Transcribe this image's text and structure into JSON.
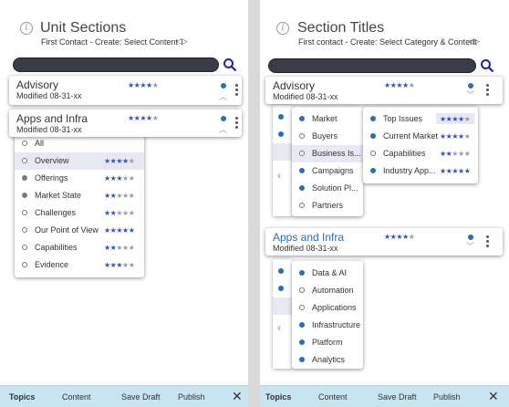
{
  "left": {
    "title": "Unit Sections",
    "subtitle": "First Contact - Create: Select Content",
    "cards": [
      {
        "title": "Advisory",
        "modified": "Modified  08-31-xx",
        "rating": 4
      },
      {
        "title": "Apps and Infra",
        "modified": "Modified  08-31-xx",
        "rating": 4
      }
    ],
    "items": [
      {
        "label": "All",
        "bullet": "hollow",
        "rating": 0,
        "selected": false
      },
      {
        "label": "Overview",
        "bullet": "hollow",
        "rating": 4,
        "selected": true
      },
      {
        "label": "Offerings",
        "bullet": "gray",
        "rating": 3,
        "selected": false
      },
      {
        "label": "Market State",
        "bullet": "gray",
        "rating": 2,
        "selected": false
      },
      {
        "label": "Challenges",
        "bullet": "hollow",
        "rating": 2,
        "selected": false
      },
      {
        "label": "Our Point of View",
        "bullet": "hollow",
        "rating": 5,
        "selected": false
      },
      {
        "label": "Capabilities",
        "bullet": "hollow",
        "rating": 2,
        "selected": false
      },
      {
        "label": "Evidence",
        "bullet": "hollow",
        "rating": 3,
        "selected": false
      }
    ]
  },
  "right": {
    "title": "Section Titles",
    "subtitle": "First contact - Create: Select Category & Content",
    "cards": [
      {
        "title": "Advisory",
        "modified": "Modified  08-31-xx",
        "rating": 4
      },
      {
        "title": "Apps and Infra",
        "modified": "Modified  08-31-xx",
        "rating": 4
      }
    ],
    "advisory_categories": [
      {
        "label": "Market",
        "bullet": "filled",
        "selected": false
      },
      {
        "label": "Buyers",
        "bullet": "hollow",
        "selected": false
      },
      {
        "label": "Business Is...",
        "bullet": "hollow",
        "selected": true
      },
      {
        "label": "Campaigns",
        "bullet": "filled",
        "selected": false
      },
      {
        "label": "Solution Pl...",
        "bullet": "filled",
        "selected": false
      },
      {
        "label": "Partners",
        "bullet": "hollow",
        "selected": false
      }
    ],
    "advisory_contents": [
      {
        "label": "Top Issues",
        "bullet": "filled",
        "rating": 4
      },
      {
        "label": "Current Market",
        "bullet": "filled",
        "rating": 4
      },
      {
        "label": "Capabilities",
        "bullet": "hollow",
        "rating": 2
      },
      {
        "label": "Industry App...",
        "bullet": "filled",
        "rating": 5
      }
    ],
    "infra_categories": [
      {
        "label": "Data & AI",
        "bullet": "filled"
      },
      {
        "label": "Automation",
        "bullet": "hollow"
      },
      {
        "label": "Applications",
        "bullet": "hollow"
      },
      {
        "label": "Infrastructure",
        "bullet": "filled"
      },
      {
        "label": "Platform",
        "bullet": "filled"
      },
      {
        "label": "Analytics",
        "bullet": "filled"
      }
    ]
  },
  "toolbar": {
    "topics": "Topics",
    "content": "Content",
    "save_draft": "Save Draft",
    "publish": "Publish",
    "close": "✕"
  },
  "colors": {
    "star_on": "#3451b8",
    "star_off": "#9a9a9a",
    "bullet": "#2a6fb0",
    "toolbar": "#c7e4ef"
  }
}
